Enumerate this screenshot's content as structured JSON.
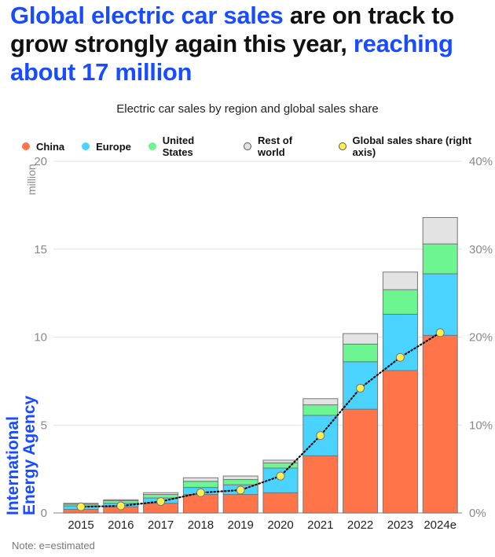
{
  "headline": {
    "part1": "Global electric car sales",
    "part2": " are on track to grow strongly again this year, ",
    "part3": "reaching about 17 million"
  },
  "logo": {
    "line1": "International",
    "line2": "Energy Agency"
  },
  "note": "Note:  e=estimated",
  "colors": {
    "accent": "#1a4cff",
    "china": "#ff7549",
    "europe": "#4bd3ff",
    "us": "#6cf590",
    "row": "#e3e3e3",
    "share": "#fff04f"
  },
  "chart_data": {
    "type": "bar",
    "stacked": true,
    "title": "Electric car sales by region and global sales share",
    "ylabel": "million",
    "ylabel_right": "",
    "ylim": [
      0,
      20
    ],
    "ylim_right": [
      0,
      40
    ],
    "yticks": [
      "0",
      "5",
      "10",
      "15",
      "20"
    ],
    "yticks_right": [
      "0%",
      "10%",
      "20%",
      "30%",
      "40%"
    ],
    "grid": true,
    "legend_position": "top",
    "categories": [
      "2015",
      "2016",
      "2017",
      "2018",
      "2019",
      "2020",
      "2021",
      "2022",
      "2023",
      "2024e"
    ],
    "series": [
      {
        "name": "China",
        "key": "china",
        "values": [
          0.2,
          0.35,
          0.55,
          1.05,
          1.05,
          1.15,
          3.25,
          5.9,
          8.1,
          10.1
        ]
      },
      {
        "name": "Europe",
        "key": "europe",
        "values": [
          0.2,
          0.2,
          0.3,
          0.4,
          0.55,
          1.4,
          2.3,
          2.7,
          3.2,
          3.5
        ]
      },
      {
        "name": "United States",
        "key": "us",
        "values": [
          0.1,
          0.15,
          0.2,
          0.35,
          0.3,
          0.3,
          0.6,
          1.0,
          1.4,
          1.7
        ]
      },
      {
        "name": "Rest of world",
        "key": "row",
        "values": [
          0.05,
          0.05,
          0.1,
          0.2,
          0.2,
          0.15,
          0.35,
          0.6,
          1.0,
          1.5
        ]
      }
    ],
    "line_series": {
      "name": "Global sales share (right axis)",
      "key": "share",
      "axis": "right",
      "unit": "%",
      "values": [
        0.7,
        0.8,
        1.3,
        2.3,
        2.6,
        4.2,
        8.8,
        14.2,
        17.7,
        20.5
      ]
    }
  }
}
